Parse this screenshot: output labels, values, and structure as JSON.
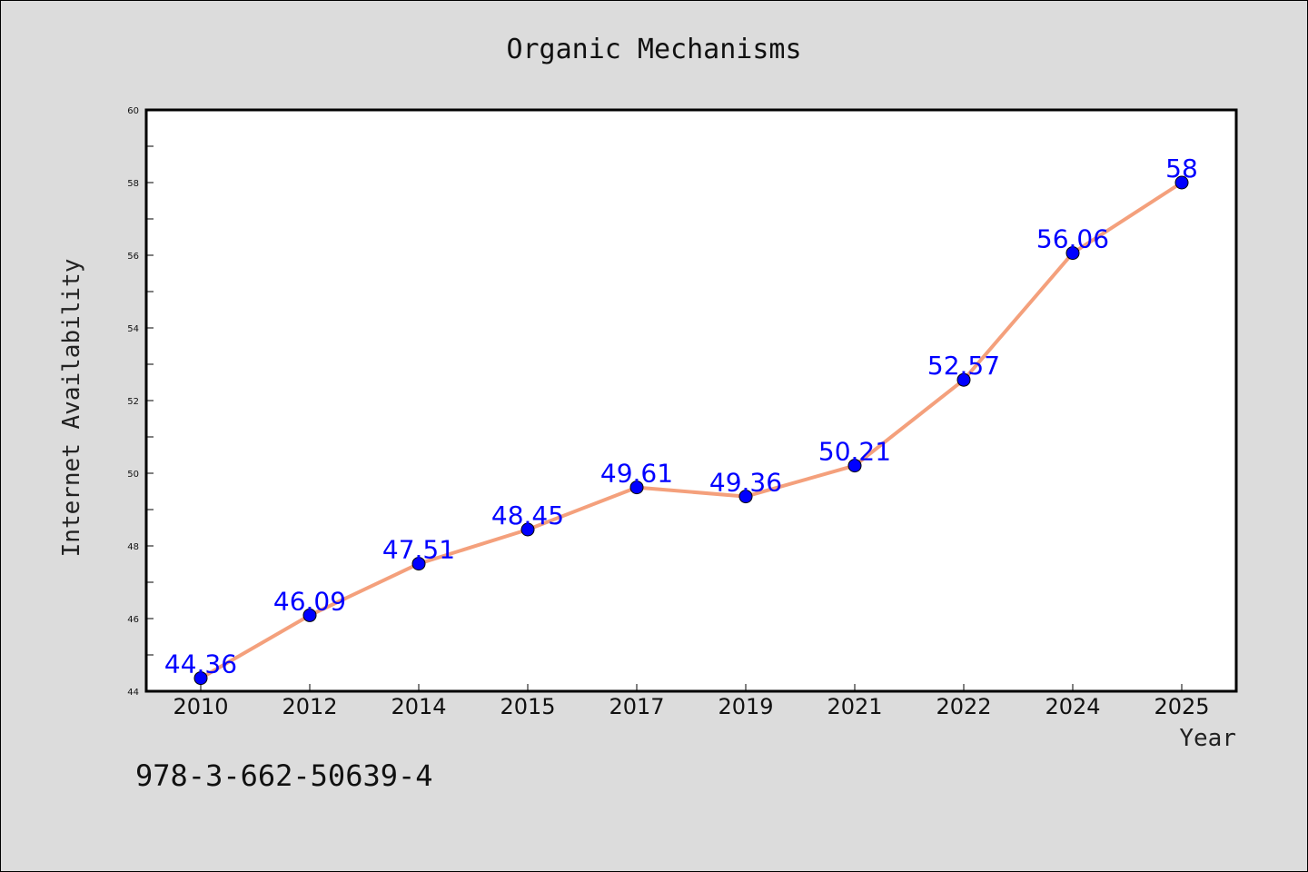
{
  "isbn": "978-3-662-50639-4",
  "colors": {
    "background": "#dcdcdc",
    "plot_background": "#ffffff",
    "line": "#f4a07c",
    "marker": "#0000ff",
    "data_label": "#0000ff"
  },
  "chart_data": {
    "type": "line",
    "title": "Organic Mechanisms",
    "xlabel": "Year",
    "ylabel": "Internet Availability",
    "categories": [
      "2010",
      "2012",
      "2014",
      "2015",
      "2017",
      "2019",
      "2021",
      "2022",
      "2024",
      "2025"
    ],
    "values": [
      44.36,
      46.09,
      47.51,
      48.45,
      49.61,
      49.36,
      50.21,
      52.57,
      56.06,
      58
    ],
    "data_labels": [
      "44.36",
      "46.09",
      "47.51",
      "48.45",
      "49.61",
      "49.36",
      "50.21",
      "52.57",
      "56.06",
      "58"
    ],
    "ylim": [
      44,
      60
    ],
    "yticks": [
      44,
      46,
      48,
      50,
      52,
      54,
      56,
      58,
      60
    ],
    "ytick_labels": [
      "44",
      "46",
      "48",
      "50",
      "52",
      "54",
      "56",
      "58",
      "60"
    ],
    "grid": false,
    "legend": "none"
  }
}
